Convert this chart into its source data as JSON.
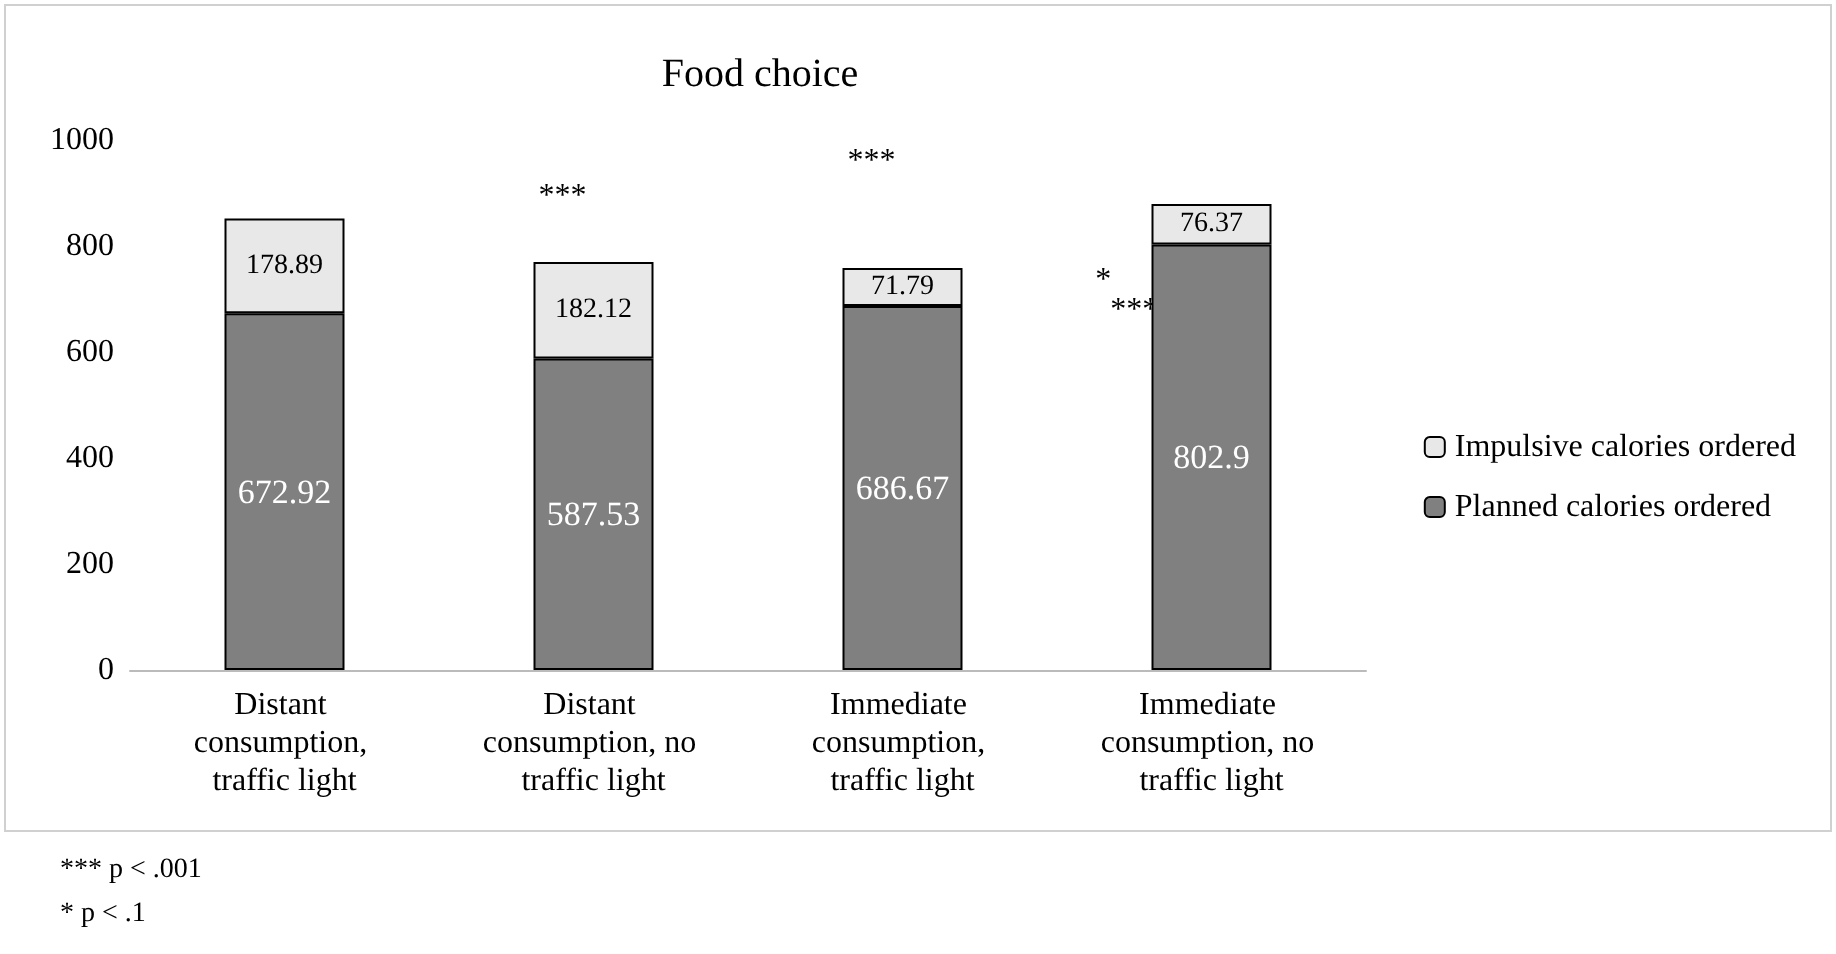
{
  "chart_data": {
    "type": "bar",
    "title": "Food choice",
    "stacked": true,
    "data_labels": true,
    "legend": "right",
    "categories": [
      "Distant consumption, traffic light",
      "Distant consumption, no traffic light",
      "Immediate consumption, traffic light",
      "Immediate consumption, no traffic light"
    ],
    "series": [
      {
        "name": "Planned calories ordered",
        "color": "#808080",
        "values": [
          672.92,
          587.53,
          686.67,
          802.9
        ]
      },
      {
        "name": "Impulsive calories ordered",
        "color": "#e8e8e8",
        "values": [
          178.89,
          182.12,
          71.79,
          76.37
        ]
      }
    ],
    "ylim": [
      0,
      1000
    ],
    "yticks": [
      0,
      200,
      400,
      600,
      800,
      1000
    ],
    "annotations": [
      "***",
      "***",
      "*",
      "***",
      "*** p < .001",
      "* p < .1"
    ]
  }
}
